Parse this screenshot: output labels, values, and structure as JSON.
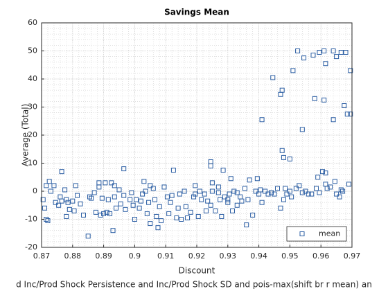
{
  "chart_data": {
    "type": "scatter",
    "title": "Savings Mean",
    "xlabel": "Discount",
    "ylabel": "Average (Total)",
    "caption": "d Inc/Prod Shock Persistence and Inc/Prod Shock SD and pois-max(shift br r mean) an",
    "xlim": [
      0.87,
      0.97
    ],
    "xticks": [
      0.87,
      0.88,
      0.89,
      0.9,
      0.91,
      0.92,
      0.93,
      0.94,
      0.95,
      0.96,
      0.97
    ],
    "ylim": [
      -20,
      60
    ],
    "yticks": [
      -20,
      -10,
      0,
      10,
      20,
      30,
      40,
      50,
      60
    ],
    "grid": true,
    "minor_grid": true,
    "legend": "southeast",
    "x": [
      0.9525,
      0.9545,
      0.9575,
      0.951,
      0.9445,
      0.9475,
      0.947,
      0.941,
      0.9595,
      0.961,
      0.9615,
      0.964,
      0.965,
      0.9665,
      0.968,
      0.9695,
      0.958,
      0.961,
      0.9675,
      0.9685,
      0.9695,
      0.964,
      0.954,
      0.9475,
      0.948,
      0.95,
      0.9245,
      0.9245,
      0.9285,
      0.8765,
      0.8965,
      0.9125,
      0.9195,
      0.8705,
      0.871,
      0.8715,
      0.8715,
      0.872,
      0.8725,
      0.873,
      0.874,
      0.8745,
      0.8755,
      0.876,
      0.8765,
      0.8775,
      0.878,
      0.8785,
      0.879,
      0.88,
      0.8805,
      0.881,
      0.8815,
      0.8825,
      0.8835,
      0.885,
      0.8855,
      0.887,
      0.8875,
      0.8885,
      0.889,
      0.8885,
      0.8895,
      0.89,
      0.8905,
      0.891,
      0.8915,
      0.892,
      0.8925,
      0.893,
      0.8935,
      0.8935,
      0.894,
      0.8955,
      0.8965,
      0.897,
      0.8985,
      0.899,
      0.8995,
      0.9,
      0.9005,
      0.9015,
      0.9025,
      0.903,
      0.9035,
      0.904,
      0.9045,
      0.905,
      0.906,
      0.9065,
      0.907,
      0.9075,
      0.908,
      0.9085,
      0.9095,
      0.9105,
      0.911,
      0.9115,
      0.912,
      0.9135,
      0.914,
      0.9145,
      0.915,
      0.9165,
      0.917,
      0.918,
      0.919,
      0.9195,
      0.9205,
      0.921,
      0.9215,
      0.9225,
      0.923,
      0.9235,
      0.9245,
      0.925,
      0.926,
      0.927,
      0.9275,
      0.928,
      0.929,
      0.93,
      0.9305,
      0.931,
      0.9315,
      0.932,
      0.933,
      0.934,
      0.9345,
      0.9355,
      0.936,
      0.9365,
      0.937,
      0.938,
      0.939,
      0.9395,
      0.94,
      0.9405,
      0.941,
      0.942,
      0.943,
      0.944,
      0.946,
      0.947,
      0.948,
      0.9485,
      0.949,
      0.95,
      0.9505,
      0.952,
      0.953,
      0.954,
      0.955,
      0.956,
      0.957,
      0.9585,
      0.959,
      0.9595,
      0.9605,
      0.9615,
      0.962,
      0.963,
      0.9645,
      0.965,
      0.966,
      0.9665,
      0.967,
      0.969,
      0.93,
      0.933,
      0.927,
      0.925,
      0.916,
      0.905,
      0.902,
      0.895,
      0.886,
      0.878,
      0.945,
      0.9615
    ],
    "series": [
      {
        "name": "mean",
        "color": "#2a5da3",
        "values": [
          50,
          47.5,
          48.5,
          43,
          40.5,
          36,
          34.5,
          25.5,
          49.5,
          50,
          45.5,
          50,
          48,
          49.5,
          49.5,
          43,
          33,
          32.5,
          30.5,
          27.5,
          27.5,
          25.5,
          22,
          14.5,
          12,
          11.5,
          10.5,
          9,
          7.5,
          7,
          8,
          7.5,
          2,
          -3,
          -6,
          -10,
          2,
          -10.5,
          3.5,
          0,
          2,
          -4,
          -5,
          -2,
          -3.5,
          0.5,
          -9,
          -4,
          -6.5,
          -3.5,
          -7,
          2,
          -1.5,
          -4.5,
          -8.5,
          -16,
          -2,
          -0.5,
          -7.5,
          3,
          -8.5,
          1.5,
          -2.5,
          -8,
          3,
          -7.5,
          -3,
          -8,
          3,
          -14,
          2,
          -2,
          -6,
          -4.5,
          -1.5,
          -6.5,
          -3,
          -0.5,
          -5,
          -10,
          -3,
          -6,
          -1,
          3.5,
          0,
          -8,
          -4,
          -11.5,
          1,
          -3,
          -9,
          -13,
          -5.5,
          -10.5,
          1.5,
          -2,
          -8,
          -4,
          -1.5,
          -9.5,
          -6,
          -1,
          -10,
          -5.5,
          -9.5,
          -7.5,
          -2,
          -1,
          -9,
          0,
          -3,
          -1,
          -7,
          -3.5,
          -5,
          3,
          -7,
          -0.5,
          -3,
          -9,
          -2,
          -4,
          -1,
          4.5,
          -7,
          0,
          -5,
          -2,
          -3.5,
          1,
          -12,
          -3,
          4,
          -8.5,
          0,
          4.5,
          -1,
          0.5,
          -4,
          0,
          -1,
          -0.5,
          1,
          -6,
          -3,
          1,
          -1,
          0,
          -2,
          1,
          2,
          -0.5,
          0,
          -1,
          -1,
          1,
          5,
          -0.5,
          7,
          6.5,
          1,
          1.5,
          3.5,
          -1,
          -2,
          0.5,
          0,
          2.5,
          -3,
          -0.5,
          1.5,
          0,
          0,
          2,
          -3.5,
          0.5,
          -2.5,
          -3,
          -1,
          2.5
        ]
      }
    ]
  }
}
